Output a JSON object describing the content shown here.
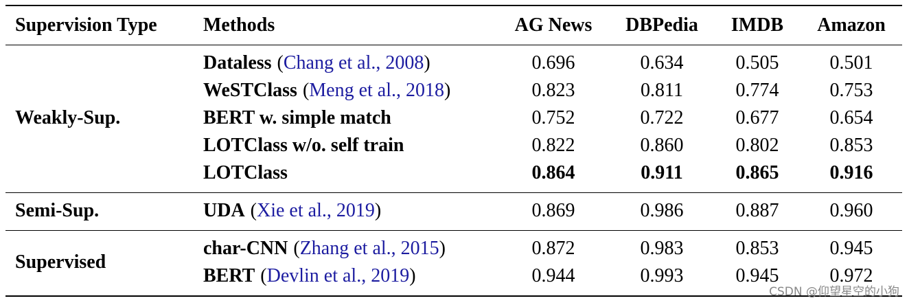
{
  "header": [
    "Supervision Type",
    "Methods",
    "AG News",
    "DBPedia",
    "IMDB",
    "Amazon"
  ],
  "groups": [
    {
      "type": "Weakly-Sup.",
      "rows": [
        {
          "method": "Dataless",
          "cite": {
            "open": "(",
            "text": "Chang et al., 2008",
            "close": ")"
          },
          "scores": [
            "0.696",
            "0.634",
            "0.505",
            "0.501"
          ]
        },
        {
          "method": "WeSTClass",
          "cite": {
            "open": "(",
            "text": "Meng et al., 2018",
            "close": ")"
          },
          "scores": [
            "0.823",
            "0.811",
            "0.774",
            "0.753"
          ]
        },
        {
          "method": "BERT w. simple match",
          "scores": [
            "0.752",
            "0.722",
            "0.677",
            "0.654"
          ]
        },
        {
          "method": "LOTClass w/o. self train",
          "scores": [
            "0.822",
            "0.860",
            "0.802",
            "0.853"
          ]
        },
        {
          "method": "LOTClass",
          "scores": [
            "0.864",
            "0.911",
            "0.865",
            "0.916"
          ],
          "bold_scores": true
        }
      ]
    },
    {
      "type": "Semi-Sup.",
      "rows": [
        {
          "method": "UDA",
          "cite": {
            "open": "(",
            "text": "Xie et al., 2019",
            "close": ")"
          },
          "scores": [
            "0.869",
            "0.986",
            "0.887",
            "0.960"
          ]
        }
      ]
    },
    {
      "type": "Supervised",
      "rows": [
        {
          "method": "char-CNN",
          "cite": {
            "open": "(",
            "text": "Zhang et al., 2015",
            "close": ")"
          },
          "scores": [
            "0.872",
            "0.983",
            "0.853",
            "0.945"
          ]
        },
        {
          "method": "BERT",
          "cite": {
            "open": "(",
            "text": "Devlin et al., 2019",
            "close": ")"
          },
          "scores": [
            "0.944",
            "0.993",
            "0.945",
            "0.972"
          ]
        }
      ]
    }
  ],
  "watermark": "CSDN @仰望星空的小狗"
}
